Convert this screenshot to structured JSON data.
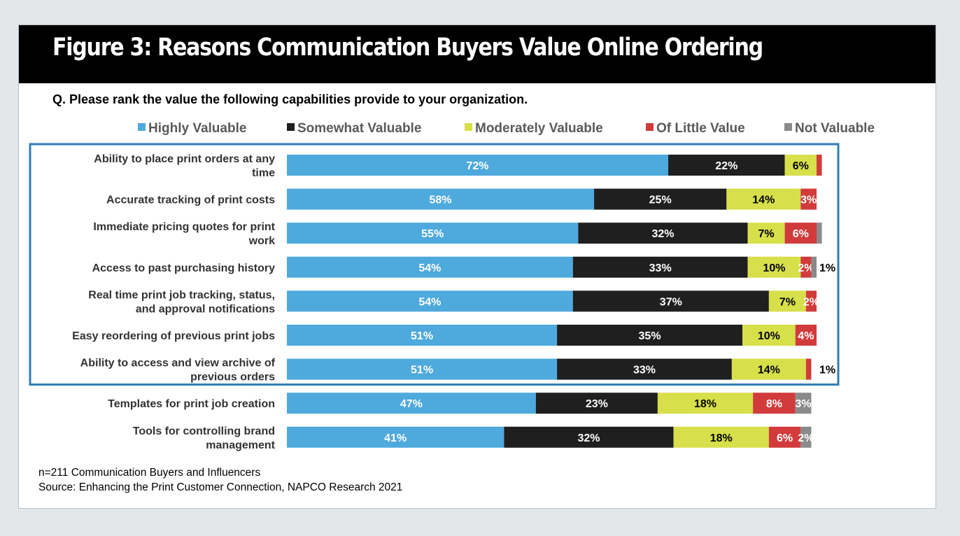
{
  "title": "Figure 3: Reasons Communication Buyers Value Online Ordering",
  "question": "Q. Please rank the value the following capabilities provide to your organization.",
  "footer": {
    "sample": "n=211 Communication Buyers and Influencers",
    "source": "Source: Enhancing the Print Customer Connection, NAPCO Research 2021"
  },
  "colors": {
    "highly": "#4ea9dd",
    "somewhat": "#1f1f1f",
    "moderately": "#d7df4a",
    "little": "#d13b3b",
    "not": "#8a8a8a",
    "highlight_box": "#2d7db6"
  },
  "chart_data": {
    "type": "bar",
    "orientation": "horizontal",
    "stacked": true,
    "unit": "%",
    "legend_position": "top",
    "highlighted_rows": [
      0,
      1,
      2,
      3,
      4,
      5,
      6
    ],
    "categories": [
      [
        "Ability to place print orders at any",
        "time"
      ],
      [
        "Accurate tracking of print costs"
      ],
      [
        "Immediate pricing quotes for print",
        "work"
      ],
      [
        "Access to past purchasing history"
      ],
      [
        "Real time print job tracking, status,",
        "and approval notifications"
      ],
      [
        "Easy reordering of previous print jobs"
      ],
      [
        "Ability to access and view archive of",
        "previous orders"
      ],
      [
        "Templates for print job creation"
      ],
      [
        "Tools for controlling brand",
        "management"
      ]
    ],
    "series": [
      {
        "name": "Highly Valuable",
        "color_key": "highly",
        "label_color": "#ffffff",
        "values": [
          72,
          58,
          55,
          54,
          54,
          51,
          51,
          47,
          41
        ]
      },
      {
        "name": "Somewhat Valuable",
        "color_key": "somewhat",
        "label_color": "#ffffff",
        "values": [
          22,
          25,
          32,
          33,
          37,
          35,
          33,
          23,
          32
        ]
      },
      {
        "name": "Moderately Valuable",
        "color_key": "moderately",
        "label_color": "#000000",
        "values": [
          6,
          14,
          7,
          10,
          7,
          10,
          14,
          18,
          18
        ]
      },
      {
        "name": "Of Little Value",
        "color_key": "little",
        "label_color": "#ffffff",
        "values": [
          1,
          3,
          6,
          2,
          2,
          4,
          1,
          8,
          6
        ]
      },
      {
        "name": "Not Valuable",
        "color_key": "not",
        "label_color": "#ffffff",
        "values": [
          0,
          0,
          1,
          1,
          0,
          0,
          0,
          3,
          2
        ]
      }
    ],
    "labels": [
      [
        "72%",
        "22%",
        "6%",
        "",
        ""
      ],
      [
        "58%",
        "25%",
        "14%",
        "3%",
        ""
      ],
      [
        "55%",
        "32%",
        "7%",
        "6%",
        ""
      ],
      [
        "54%",
        "33%",
        "10%",
        "2%",
        "1%"
      ],
      [
        "54%",
        "37%",
        "7%",
        "2%",
        ""
      ],
      [
        "51%",
        "35%",
        "10%",
        "4%",
        ""
      ],
      [
        "51%",
        "33%",
        "14%",
        "1%",
        ""
      ],
      [
        "47%",
        "23%",
        "18%",
        "8%",
        "3%"
      ],
      [
        "41%",
        "32%",
        "18%",
        "6%",
        "2%"
      ]
    ],
    "outside_label_series": [
      [
        null,
        null,
        null,
        null,
        null
      ],
      [
        null,
        null,
        null,
        null,
        null
      ],
      [
        null,
        null,
        null,
        null,
        null
      ],
      [
        null,
        null,
        null,
        null,
        "outside"
      ],
      [
        null,
        null,
        null,
        null,
        null
      ],
      [
        null,
        null,
        null,
        null,
        null
      ],
      [
        null,
        null,
        null,
        "outside",
        null
      ],
      [
        null,
        null,
        null,
        null,
        null
      ],
      [
        null,
        null,
        null,
        null,
        null
      ]
    ]
  }
}
